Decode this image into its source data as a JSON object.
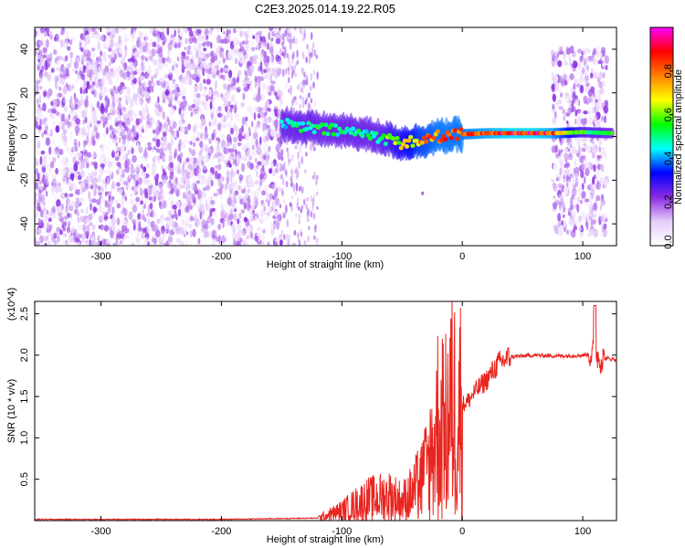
{
  "title": "C2E3.2025.014.19.22.R05",
  "chart_data": [
    {
      "type": "heatmap",
      "xlabel": "Height of straight line (km)",
      "ylabel": "Frequency (Hz)",
      "xlim": [
        -355,
        128
      ],
      "ylim": [
        -50,
        50
      ],
      "x_ticks": [
        -300,
        -200,
        -100,
        0,
        100
      ],
      "y_ticks": [
        -40,
        -20,
        0,
        20,
        40
      ],
      "colorbar": {
        "label": "Normalized spectral amplitude",
        "range": [
          0,
          1
        ],
        "ticks": [
          "0.0",
          "0.2",
          "0.4",
          "0.6",
          "0.8"
        ],
        "colors": [
          "#ffffff",
          "#e6cdfa",
          "#8a2be2",
          "#0000ff",
          "#00ffff",
          "#00ff00",
          "#ffff00",
          "#ff8000",
          "#ff0000",
          "#ff00ff"
        ]
      },
      "features": [
        {
          "region": "noise",
          "x_range": [
            -355,
            -150
          ],
          "freq_range": [
            -50,
            50
          ],
          "amplitude": 0.2
        },
        {
          "region": "ridge",
          "x": [
            -150,
            -130,
            -110,
            -90,
            -70,
            -50,
            -35,
            -20,
            0,
            20,
            40,
            60,
            75,
            100,
            125
          ],
          "freq": [
            6,
            4,
            3,
            2,
            0,
            -3,
            -2,
            0,
            1,
            1.5,
            1.5,
            1.5,
            1.5,
            2,
            1.5
          ],
          "amplitude": [
            0.45,
            0.55,
            0.55,
            0.5,
            0.55,
            0.7,
            0.8,
            0.85,
            0.85,
            0.9,
            0.95,
            0.95,
            0.9,
            0.6,
            0.55
          ]
        },
        {
          "region": "noise",
          "x_range": [
            75,
            120
          ],
          "freq_range": [
            -45,
            40
          ],
          "amplitude": 0.2
        }
      ]
    },
    {
      "type": "line",
      "xlabel": "Height of straight line (km)",
      "ylabel": "SNR (10 * v/v)",
      "y_multiplier": "(x10^4)",
      "xlim": [
        -355,
        128
      ],
      "ylim": [
        0,
        26500
      ],
      "x_ticks": [
        -300,
        -200,
        -100,
        0,
        100
      ],
      "y_ticks": [
        {
          "value": 5000,
          "label": "0.5"
        },
        {
          "value": 10000,
          "label": "1.0"
        },
        {
          "value": 15000,
          "label": "1.5"
        },
        {
          "value": 20000,
          "label": "2.0"
        },
        {
          "value": 25000,
          "label": "2.5"
        }
      ],
      "color": "#e8251f",
      "series": [
        {
          "x": [
            -355,
            -200,
            -120,
            -100,
            -80,
            -60,
            -50,
            -40,
            -30,
            -25,
            -20,
            -15,
            -10,
            -5,
            0,
            5,
            10,
            20,
            30,
            40,
            60,
            80,
            100,
            110,
            115,
            120,
            128
          ],
          "y": [
            150,
            150,
            300,
            1200,
            2500,
            3000,
            2300,
            3500,
            6000,
            8500,
            12000,
            10000,
            14000,
            13500,
            14000,
            14500,
            15500,
            17000,
            19000,
            19800,
            20000,
            19900,
            20000,
            20200,
            19500,
            19600,
            19500
          ]
        }
      ]
    }
  ]
}
